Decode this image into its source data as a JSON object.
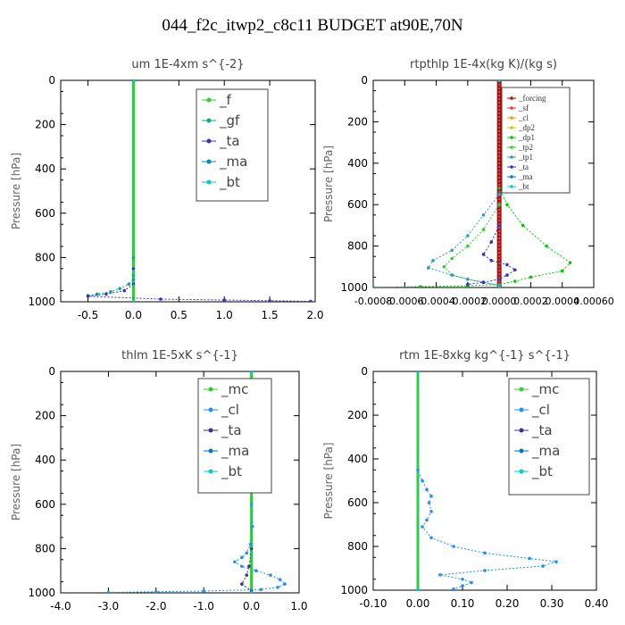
{
  "title": "044_f2c_itwp2_c8c11  BUDGET at90E,70N",
  "chart_data": [
    {
      "type": "line",
      "title": "um  1E-4xm s^{-2}",
      "ylabel": "Pressure [hPa]",
      "xlim": [
        -0.8,
        2.0
      ],
      "ylim": [
        1000,
        0
      ],
      "xticks": [
        "-0.5",
        "0.0",
        "0.5",
        "1.0",
        "1.5",
        "2.0"
      ],
      "xtick_values": [
        -0.5,
        0.0,
        0.5,
        1.0,
        1.5,
        2.0
      ],
      "yticks": [
        0,
        200,
        400,
        600,
        800,
        1000
      ],
      "legend": [
        "_f",
        "_gf",
        "_ta",
        "_ma",
        "_bt"
      ],
      "series": [
        {
          "name": "_f",
          "color": "#33cc33",
          "x": [
            0,
            0
          ],
          "y": [
            0,
            1000
          ]
        },
        {
          "name": "_gf",
          "color": "#00aa88",
          "x": [
            0,
            0,
            0,
            0,
            -0.05,
            -0.15,
            -0.25,
            -0.4,
            -0.5
          ],
          "y": [
            0,
            800,
            880,
            900,
            920,
            940,
            955,
            965,
            972
          ]
        },
        {
          "name": "_ta",
          "color": "#3333cc",
          "x": [
            0,
            0,
            0,
            -0.1,
            -0.3,
            -0.5,
            0.3,
            1.0,
            1.5,
            1.95
          ],
          "y": [
            0,
            850,
            920,
            950,
            965,
            975,
            988,
            992,
            995,
            998
          ]
        },
        {
          "name": "_ma",
          "color": "#0088cc",
          "x": [
            0,
            0
          ],
          "y": [
            0,
            1000
          ]
        },
        {
          "name": "_bt",
          "color": "#00cccc",
          "x": [
            0,
            0
          ],
          "y": [
            0,
            1000
          ]
        }
      ]
    },
    {
      "type": "line",
      "title": "rtpthlp  1E-4x(kg K)/(kg s)",
      "ylabel": "Pressure [hPa]",
      "xlim": [
        -0.0008,
        0.0006
      ],
      "ylim": [
        1000,
        0
      ],
      "xticks": [
        "-0.0008",
        "-0.0006",
        "-0.0004",
        "-0.0002",
        "0.0000",
        "0.0002",
        "0.0004",
        "0.00060"
      ],
      "xtick_values": [
        -0.0008,
        -0.0006,
        -0.0004,
        -0.0002,
        0.0,
        0.0002,
        0.0004,
        0.0006
      ],
      "yticks": [
        0,
        200,
        400,
        600,
        800,
        1000
      ],
      "legend": [
        "_forcing",
        "_sf",
        "_cl",
        "_dp2",
        "_dp1",
        "_tp2",
        "_tp1",
        "_ta",
        "_ma",
        "_bt"
      ],
      "series": [
        {
          "name": "_forcing",
          "color": "#cc0000",
          "x": [
            0,
            0
          ],
          "y": [
            0,
            1000
          ]
        },
        {
          "name": "_sf",
          "color": "#ff3333",
          "x": [
            0,
            0
          ],
          "y": [
            0,
            1000
          ]
        },
        {
          "name": "_cl",
          "color": "#ff9900",
          "x": [
            0,
            0
          ],
          "y": [
            0,
            1000
          ]
        },
        {
          "name": "_dp2",
          "color": "#cccc00",
          "x": [
            0,
            0
          ],
          "y": [
            0,
            1000
          ]
        },
        {
          "name": "_dp1",
          "color": "#00cc00",
          "x": [
            0,
            0,
            5e-05,
            0.00015,
            0.0003,
            0.00045,
            0.0004,
            0.0002,
            0.0001,
            0,
            -0.0002,
            -0.0005,
            -0.0008
          ],
          "y": [
            0,
            520,
            600,
            700,
            800,
            880,
            920,
            950,
            970,
            985,
            992,
            996,
            999
          ]
        },
        {
          "name": "_tp2",
          "color": "#33cc33",
          "x": [
            0,
            0,
            -0.0001,
            -0.0002,
            -0.0003,
            -0.00035,
            -0.0003,
            -0.0002,
            -0.0001,
            0
          ],
          "y": [
            0,
            600,
            720,
            800,
            860,
            900,
            940,
            960,
            975,
            990
          ]
        },
        {
          "name": "_tp1",
          "color": "#3399cc",
          "x": [
            0,
            0,
            -0.0001,
            -0.0002,
            -0.0003,
            -0.00042,
            -0.00045,
            -0.0003,
            -0.0002,
            -0.0001,
            0
          ],
          "y": [
            0,
            550,
            650,
            750,
            820,
            870,
            905,
            940,
            960,
            975,
            990
          ]
        },
        {
          "name": "_ta",
          "color": "#3333cc",
          "x": [
            0,
            0,
            -5e-05,
            -0.0001,
            -5e-05,
            5e-05,
            0.0001,
            5e-05,
            0,
            -0.0001,
            -0.0002
          ],
          "y": [
            0,
            700,
            780,
            840,
            870,
            890,
            915,
            940,
            960,
            975,
            985
          ]
        },
        {
          "name": "_ma",
          "color": "#0077cc",
          "x": [
            0,
            0
          ],
          "y": [
            0,
            1000
          ]
        },
        {
          "name": "_bt",
          "color": "#00cccc",
          "x": [
            0,
            0
          ],
          "y": [
            0,
            1000
          ]
        }
      ]
    },
    {
      "type": "line",
      "title": "thlm  1E-5xK s^{-1}",
      "ylabel": "Pressure [hPa]",
      "xlim": [
        -4.0,
        1.0
      ],
      "ylim": [
        1000,
        0
      ],
      "xticks": [
        "-4.0",
        "-3.0",
        "-2.0",
        "-1.0",
        "0.0",
        "1.0"
      ],
      "xtick_values": [
        -4.0,
        -3.0,
        -2.0,
        -1.0,
        0.0,
        1.0
      ],
      "yticks": [
        0,
        200,
        400,
        600,
        800,
        1000
      ],
      "legend": [
        "_mc",
        "_cl",
        "_ta",
        "_ma",
        "_bt"
      ],
      "series": [
        {
          "name": "_mc",
          "color": "#33cc33",
          "x": [
            0,
            0
          ],
          "y": [
            0,
            1000
          ]
        },
        {
          "name": "_cl",
          "color": "#1e90ff",
          "x": [
            0,
            0,
            0.02,
            -0.02,
            -0.1,
            -0.2,
            -0.35,
            -0.2,
            0.1,
            0.4,
            0.6,
            0.7,
            0.55,
            0.2,
            -1.0,
            -2.0,
            -3.0
          ],
          "y": [
            0,
            600,
            700,
            780,
            820,
            840,
            860,
            880,
            900,
            920,
            940,
            960,
            975,
            985,
            992,
            995,
            998
          ]
        },
        {
          "name": "_ta",
          "color": "#333399",
          "x": [
            0,
            0,
            -0.05,
            -0.1,
            -0.2,
            0.0
          ],
          "y": [
            0,
            800,
            880,
            920,
            960,
            990
          ]
        },
        {
          "name": "_ma",
          "color": "#0077cc",
          "x": [
            0,
            0
          ],
          "y": [
            0,
            1000
          ]
        },
        {
          "name": "_bt",
          "color": "#00cccc",
          "x": [
            0,
            0
          ],
          "y": [
            0,
            1000
          ]
        }
      ]
    },
    {
      "type": "line",
      "title": "rtm  1E-8xkg kg^{-1} s^{-1}",
      "ylabel": "Pressure [hPa]",
      "xlim": [
        -0.1,
        0.4
      ],
      "ylim": [
        1000,
        0
      ],
      "xticks": [
        "-0.10",
        "0.00",
        "0.10",
        "0.20",
        "0.30",
        "0.40"
      ],
      "xtick_values": [
        -0.1,
        0.0,
        0.1,
        0.2,
        0.3,
        0.4
      ],
      "yticks": [
        0,
        200,
        400,
        600,
        800,
        1000
      ],
      "legend": [
        "_mc",
        "_cl",
        "_ta",
        "_ma",
        "_bt"
      ],
      "series": [
        {
          "name": "_mc",
          "color": "#33cc33",
          "x": [
            0,
            0
          ],
          "y": [
            0,
            1000
          ]
        },
        {
          "name": "_cl",
          "color": "#1e90ff",
          "x": [
            0,
            0,
            0.01,
            0.02,
            0.03,
            0.025,
            0.03,
            0.02,
            0.01,
            0.03,
            0.08,
            0.15,
            0.25,
            0.31,
            0.28,
            0.15,
            0.05,
            0.1,
            0.12,
            0.1,
            0.08
          ],
          "y": [
            0,
            450,
            500,
            540,
            570,
            600,
            640,
            680,
            710,
            760,
            800,
            830,
            855,
            870,
            890,
            910,
            930,
            950,
            965,
            980,
            995
          ]
        },
        {
          "name": "_ta",
          "color": "#333399",
          "x": [
            0,
            0
          ],
          "y": [
            0,
            1000
          ]
        },
        {
          "name": "_ma",
          "color": "#0077cc",
          "x": [
            0,
            0
          ],
          "y": [
            0,
            1000
          ]
        },
        {
          "name": "_bt",
          "color": "#00cccc",
          "x": [
            0,
            0
          ],
          "y": [
            0,
            1000
          ]
        }
      ]
    }
  ]
}
